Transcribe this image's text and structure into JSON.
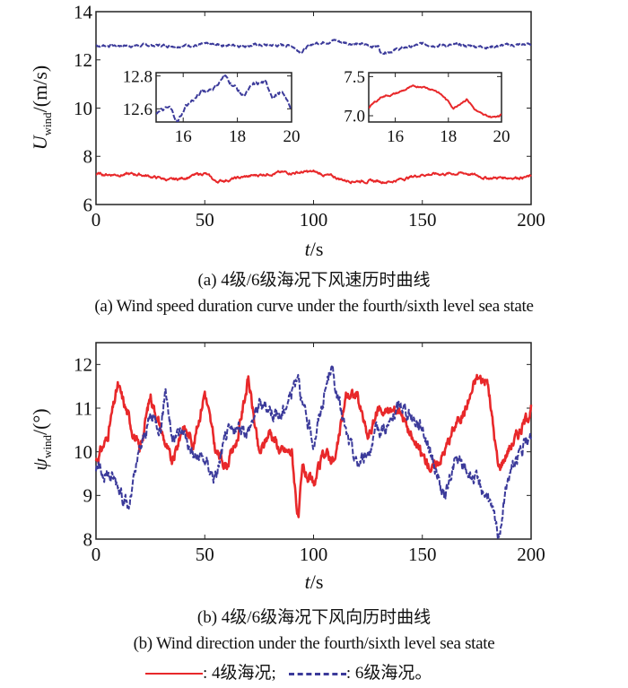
{
  "chart_data": [
    {
      "type": "line",
      "panel": "a",
      "ylabel_main": "U",
      "ylabel_sub": "wind",
      "ylabel_unit": "/(m/s)",
      "xlabel_italic": "t",
      "xlabel_unit": "/s",
      "xlim": [
        0,
        200
      ],
      "ylim": [
        6,
        14
      ],
      "xticks": [
        "0",
        "50",
        "100",
        "150",
        "200"
      ],
      "yticks": [
        "6",
        "8",
        "10",
        "12",
        "14"
      ],
      "series": [
        {
          "name": "6级海况",
          "color": "#3b3a9a",
          "dash": true,
          "mean": 12.62,
          "amp": 0.08,
          "keys_x": [
            0,
            30,
            60,
            90,
            94,
            100,
            110,
            112,
            130,
            131,
            150,
            180,
            200
          ],
          "keys_y": [
            12.6,
            12.6,
            12.62,
            12.6,
            12.35,
            12.68,
            12.82,
            12.75,
            12.55,
            12.3,
            12.65,
            12.55,
            12.65
          ]
        },
        {
          "name": "4级海况",
          "color": "#e8282a",
          "dash": false,
          "mean": 7.2,
          "amp": 0.08,
          "keys_x": [
            0,
            20,
            35,
            50,
            55,
            80,
            100,
            115,
            135,
            150,
            170,
            180,
            200
          ],
          "keys_y": [
            7.25,
            7.25,
            7.0,
            7.3,
            6.95,
            7.3,
            7.35,
            7.0,
            6.95,
            7.25,
            7.3,
            7.1,
            7.15
          ]
        }
      ],
      "insets": [
        {
          "xlim": [
            15,
            20
          ],
          "ylim": [
            12.52,
            12.82
          ],
          "xticks": [
            "16",
            "18",
            "20"
          ],
          "yticks": [
            "12.6",
            "12.8"
          ],
          "series": "6级海况",
          "keys_x": [
            15,
            15.5,
            15.8,
            16.1,
            16.7,
            17.2,
            17.5,
            17.9,
            18.2,
            18.6,
            19.0,
            19.3,
            19.6,
            20
          ],
          "keys_y": [
            12.58,
            12.6,
            12.52,
            12.62,
            12.7,
            12.74,
            12.8,
            12.74,
            12.68,
            12.74,
            12.76,
            12.68,
            12.7,
            12.6
          ]
        },
        {
          "xlim": [
            15,
            20
          ],
          "ylim": [
            6.92,
            7.55
          ],
          "xticks": [
            "16",
            "18",
            "20"
          ],
          "yticks": [
            "7.0",
            "7.5"
          ],
          "series": "4级海况",
          "keys_x": [
            15,
            15.5,
            16,
            16.5,
            17,
            17.5,
            17.8,
            18.2,
            18.5,
            18.7,
            19.0,
            19.3,
            19.7,
            20
          ],
          "keys_y": [
            7.1,
            7.25,
            7.28,
            7.35,
            7.38,
            7.33,
            7.25,
            7.1,
            7.18,
            7.22,
            7.08,
            7.0,
            6.98,
            7.02
          ]
        }
      ]
    },
    {
      "type": "line",
      "panel": "b",
      "ylabel_main": "ψ",
      "ylabel_sub": "wind",
      "ylabel_unit": "/(°)",
      "xlabel_italic": "t",
      "xlabel_unit": "/s",
      "xlim": [
        0,
        200
      ],
      "ylim": [
        8,
        12.5
      ],
      "xticks": [
        "0",
        "50",
        "100",
        "150",
        "200"
      ],
      "yticks": [
        "8",
        "9",
        "10",
        "11",
        "12"
      ],
      "series": [
        {
          "name": "4级海况",
          "color": "#e8282a",
          "dash": false,
          "amp": 0.12,
          "keys_x": [
            0,
            5,
            10,
            15,
            20,
            25,
            30,
            35,
            40,
            45,
            50,
            55,
            60,
            65,
            70,
            75,
            80,
            85,
            90,
            93,
            95,
            100,
            105,
            110,
            115,
            120,
            125,
            130,
            135,
            140,
            145,
            150,
            155,
            160,
            165,
            170,
            175,
            180,
            185,
            190,
            195,
            200
          ],
          "keys_y": [
            9.8,
            10.3,
            11.5,
            10.8,
            10.0,
            11.3,
            10.5,
            9.7,
            10.6,
            10.2,
            11.4,
            10.0,
            9.7,
            10.3,
            11.7,
            9.9,
            10.5,
            10.0,
            10.0,
            8.4,
            9.6,
            9.2,
            10.0,
            9.8,
            11.3,
            11.3,
            10.3,
            11.0,
            10.9,
            11.0,
            10.3,
            9.9,
            9.6,
            10.0,
            10.6,
            11.0,
            11.7,
            11.6,
            9.6,
            10.1,
            10.5,
            11.0
          ]
        },
        {
          "name": "6级海况",
          "color": "#3b3a9a",
          "dash": true,
          "amp": 0.15,
          "keys_x": [
            0,
            5,
            10,
            15,
            20,
            25,
            30,
            32,
            35,
            40,
            45,
            50,
            55,
            60,
            65,
            70,
            75,
            80,
            85,
            90,
            93,
            95,
            100,
            105,
            108,
            110,
            115,
            120,
            125,
            130,
            135,
            140,
            145,
            150,
            155,
            160,
            165,
            170,
            175,
            180,
            185,
            190,
            195,
            200
          ],
          "keys_y": [
            9.6,
            9.5,
            9.3,
            8.7,
            10.0,
            10.8,
            10.6,
            11.5,
            10.3,
            10.5,
            9.9,
            9.8,
            9.4,
            10.4,
            10.5,
            10.5,
            11.1,
            11.0,
            10.8,
            11.4,
            11.9,
            11.0,
            10.2,
            11.3,
            12.0,
            11.5,
            10.4,
            9.7,
            10.0,
            10.5,
            10.6,
            11.1,
            10.8,
            10.6,
            9.8,
            8.9,
            9.8,
            9.6,
            9.3,
            9.0,
            8.1,
            9.5,
            10.0,
            10.3
          ]
        }
      ]
    }
  ],
  "captions": {
    "a_cn": "(a) 4级/6级海况下风速历时曲线",
    "a_en": "(a) Wind speed duration curve under the fourth/sixth level sea state",
    "b_cn": "(b) 4级/6级海况下风向历时曲线",
    "b_en": "(b) Wind direction under the fourth/sixth level sea state"
  },
  "legend": {
    "red_label": ": 4级海况;",
    "blue_label": ": 6级海况。"
  }
}
